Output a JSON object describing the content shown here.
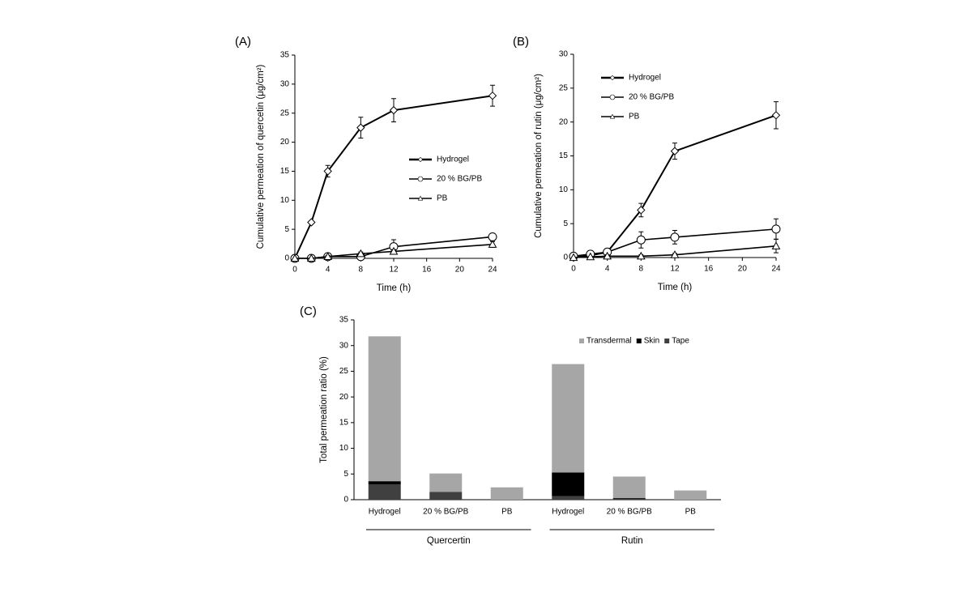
{
  "chart_data": [
    {
      "type": "line",
      "label": "(A)",
      "ylabel": "Cumulative permeation of quercetin (μg/cm²)",
      "xlabel": "Time (h)",
      "x": [
        0,
        2,
        4,
        8,
        12,
        24
      ],
      "xlim": [
        0,
        24
      ],
      "xticks": [
        0,
        4,
        8,
        12,
        16,
        20,
        24
      ],
      "ylim": [
        0,
        35
      ],
      "yticks": [
        0,
        5,
        10,
        15,
        20,
        25,
        30,
        35
      ],
      "legend": "center right",
      "series": [
        {
          "name": "Hydrogel",
          "color": "#000000",
          "marker": "diamond",
          "values": [
            0,
            6.2,
            15,
            22.5,
            25.5,
            28
          ],
          "errors": [
            0,
            0,
            1,
            1.8,
            2,
            1.8
          ]
        },
        {
          "name": "20 % BG/PB",
          "color": "#000000",
          "marker": "circle",
          "values": [
            0,
            0,
            0.3,
            0.3,
            2,
            3.7
          ],
          "errors": [
            0,
            0,
            0.5,
            0.3,
            1.2,
            0.6
          ]
        },
        {
          "name": "PB",
          "color": "#000000",
          "marker": "triangle",
          "values": [
            0,
            0,
            0.3,
            0.8,
            1.2,
            2.4
          ],
          "errors": [
            0,
            0,
            0.2,
            0.3,
            0.3,
            0.5
          ]
        }
      ]
    },
    {
      "type": "line",
      "label": "(B)",
      "ylabel": "Cumulative permeation of rutin (μg/cm²)",
      "xlabel": "Time (h)",
      "x": [
        0,
        2,
        4,
        8,
        12,
        24
      ],
      "xlim": [
        0,
        24
      ],
      "xticks": [
        0,
        4,
        8,
        12,
        16,
        20,
        24
      ],
      "ylim": [
        0,
        30
      ],
      "yticks": [
        0,
        5,
        10,
        15,
        20,
        25,
        30
      ],
      "legend": "upper left",
      "series": [
        {
          "name": "Hydrogel",
          "color": "#000000",
          "marker": "diamond",
          "values": [
            0,
            0.3,
            0.8,
            7,
            15.7,
            21
          ],
          "errors": [
            0,
            0.2,
            0.5,
            1,
            1.2,
            2
          ]
        },
        {
          "name": "20 % BG/PB",
          "color": "#000000",
          "marker": "circle",
          "values": [
            0.2,
            0.5,
            0.8,
            2.6,
            3,
            4.2
          ],
          "errors": [
            0.5,
            0.5,
            0.5,
            1.2,
            1,
            1.5
          ]
        },
        {
          "name": "PB",
          "color": "#000000",
          "marker": "triangle",
          "values": [
            0,
            0.1,
            0.2,
            0.2,
            0.4,
            1.7
          ],
          "errors": [
            0,
            0,
            0.2,
            0.2,
            0.2,
            1
          ]
        }
      ]
    },
    {
      "type": "bar",
      "stacked": true,
      "label": "(C)",
      "ylabel": "Total permeation ratio (%)",
      "categories": [
        "Hydrogel",
        "20 % BG/PB",
        "PB",
        "Hydrogel",
        "20 % BG/PB",
        "PB"
      ],
      "groups": [
        "Quercertin",
        "Rutin"
      ],
      "ylim": [
        0,
        35
      ],
      "yticks": [
        0,
        5,
        10,
        15,
        20,
        25,
        30,
        35
      ],
      "legend": "upper right",
      "series": [
        {
          "name": "Transdermal",
          "color": "#a6a6a6",
          "values": [
            28.2,
            3.6,
            2.4,
            21.1,
            4.2,
            1.8
          ]
        },
        {
          "name": "Skin",
          "color": "#000000",
          "values": [
            0.6,
            0,
            0,
            4.6,
            0.2,
            0
          ]
        },
        {
          "name": "Tape",
          "color": "#404040",
          "values": [
            3,
            1.5,
            0,
            0.7,
            0.1,
            0
          ]
        }
      ]
    }
  ]
}
